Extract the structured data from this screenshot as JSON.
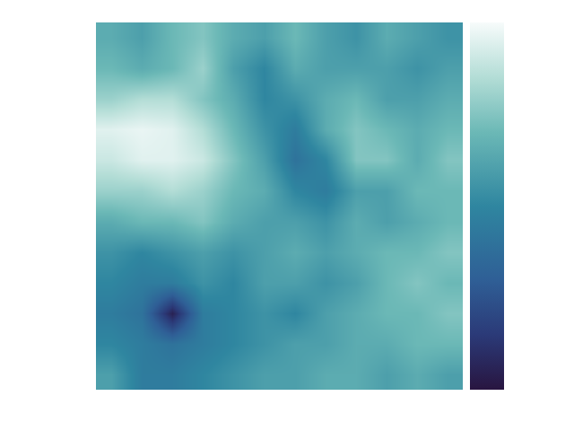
{
  "chart_data": {
    "type": "heatmap",
    "cells": [
      [
        0.65,
        0.6,
        0.7,
        0.75,
        0.65,
        0.6,
        0.7,
        0.6,
        0.55,
        0.65,
        0.6,
        0.55
      ],
      [
        0.7,
        0.65,
        0.7,
        0.8,
        0.6,
        0.5,
        0.65,
        0.6,
        0.6,
        0.6,
        0.55,
        0.6
      ],
      [
        0.8,
        0.85,
        0.85,
        0.75,
        0.65,
        0.5,
        0.55,
        0.65,
        0.7,
        0.6,
        0.6,
        0.65
      ],
      [
        0.95,
        0.97,
        0.95,
        0.85,
        0.7,
        0.55,
        0.45,
        0.65,
        0.75,
        0.7,
        0.65,
        0.7
      ],
      [
        0.9,
        0.95,
        0.95,
        0.9,
        0.75,
        0.6,
        0.4,
        0.5,
        0.75,
        0.75,
        0.65,
        0.75
      ],
      [
        0.8,
        0.8,
        0.85,
        0.8,
        0.7,
        0.65,
        0.5,
        0.45,
        0.6,
        0.6,
        0.7,
        0.7
      ],
      [
        0.65,
        0.7,
        0.7,
        0.75,
        0.65,
        0.6,
        0.6,
        0.55,
        0.65,
        0.6,
        0.65,
        0.7
      ],
      [
        0.55,
        0.5,
        0.55,
        0.6,
        0.55,
        0.6,
        0.65,
        0.6,
        0.65,
        0.7,
        0.7,
        0.75
      ],
      [
        0.5,
        0.45,
        0.45,
        0.55,
        0.5,
        0.6,
        0.6,
        0.55,
        0.6,
        0.7,
        0.75,
        0.7
      ],
      [
        0.45,
        0.4,
        0.05,
        0.45,
        0.5,
        0.55,
        0.5,
        0.6,
        0.65,
        0.7,
        0.7,
        0.75
      ],
      [
        0.5,
        0.45,
        0.4,
        0.45,
        0.5,
        0.55,
        0.6,
        0.6,
        0.65,
        0.65,
        0.7,
        0.7
      ],
      [
        0.6,
        0.45,
        0.45,
        0.5,
        0.55,
        0.6,
        0.6,
        0.65,
        0.65,
        0.6,
        0.65,
        0.6
      ]
    ],
    "zlim": [
      0,
      1
    ],
    "tick_labels": false
  }
}
